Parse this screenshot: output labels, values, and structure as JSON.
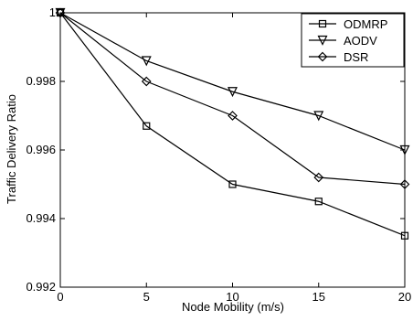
{
  "chart_data": {
    "type": "line",
    "title": "",
    "xlabel": "Node Mobility (m/s)",
    "ylabel": "Traffic Delivery Ratio",
    "xlim": [
      0,
      20
    ],
    "ylim": [
      0.992,
      1.0
    ],
    "x_ticks": [
      0,
      5,
      10,
      15,
      20
    ],
    "x_tick_labels": [
      "0",
      "5",
      "10",
      "15",
      "20"
    ],
    "y_ticks": [
      0.992,
      0.994,
      0.996,
      0.998,
      1.0
    ],
    "y_tick_labels": [
      "0.992",
      "0.994",
      "0.996",
      "0.998",
      "1"
    ],
    "grid": false,
    "legend_position": "top-right",
    "x": [
      0,
      5,
      10,
      15,
      20
    ],
    "series": [
      {
        "name": "ODMRP",
        "marker": "square",
        "values": [
          1.0,
          0.9967,
          0.995,
          0.9945,
          0.9935
        ]
      },
      {
        "name": "AODV",
        "marker": "triangle-down",
        "values": [
          1.0,
          0.9986,
          0.9977,
          0.997,
          0.996
        ]
      },
      {
        "name": "DSR",
        "marker": "diamond",
        "values": [
          1.0,
          0.998,
          0.997,
          0.9952,
          0.995
        ]
      }
    ],
    "colors": {
      "line": "#000000",
      "axis": "#000000",
      "background": "#ffffff"
    }
  }
}
